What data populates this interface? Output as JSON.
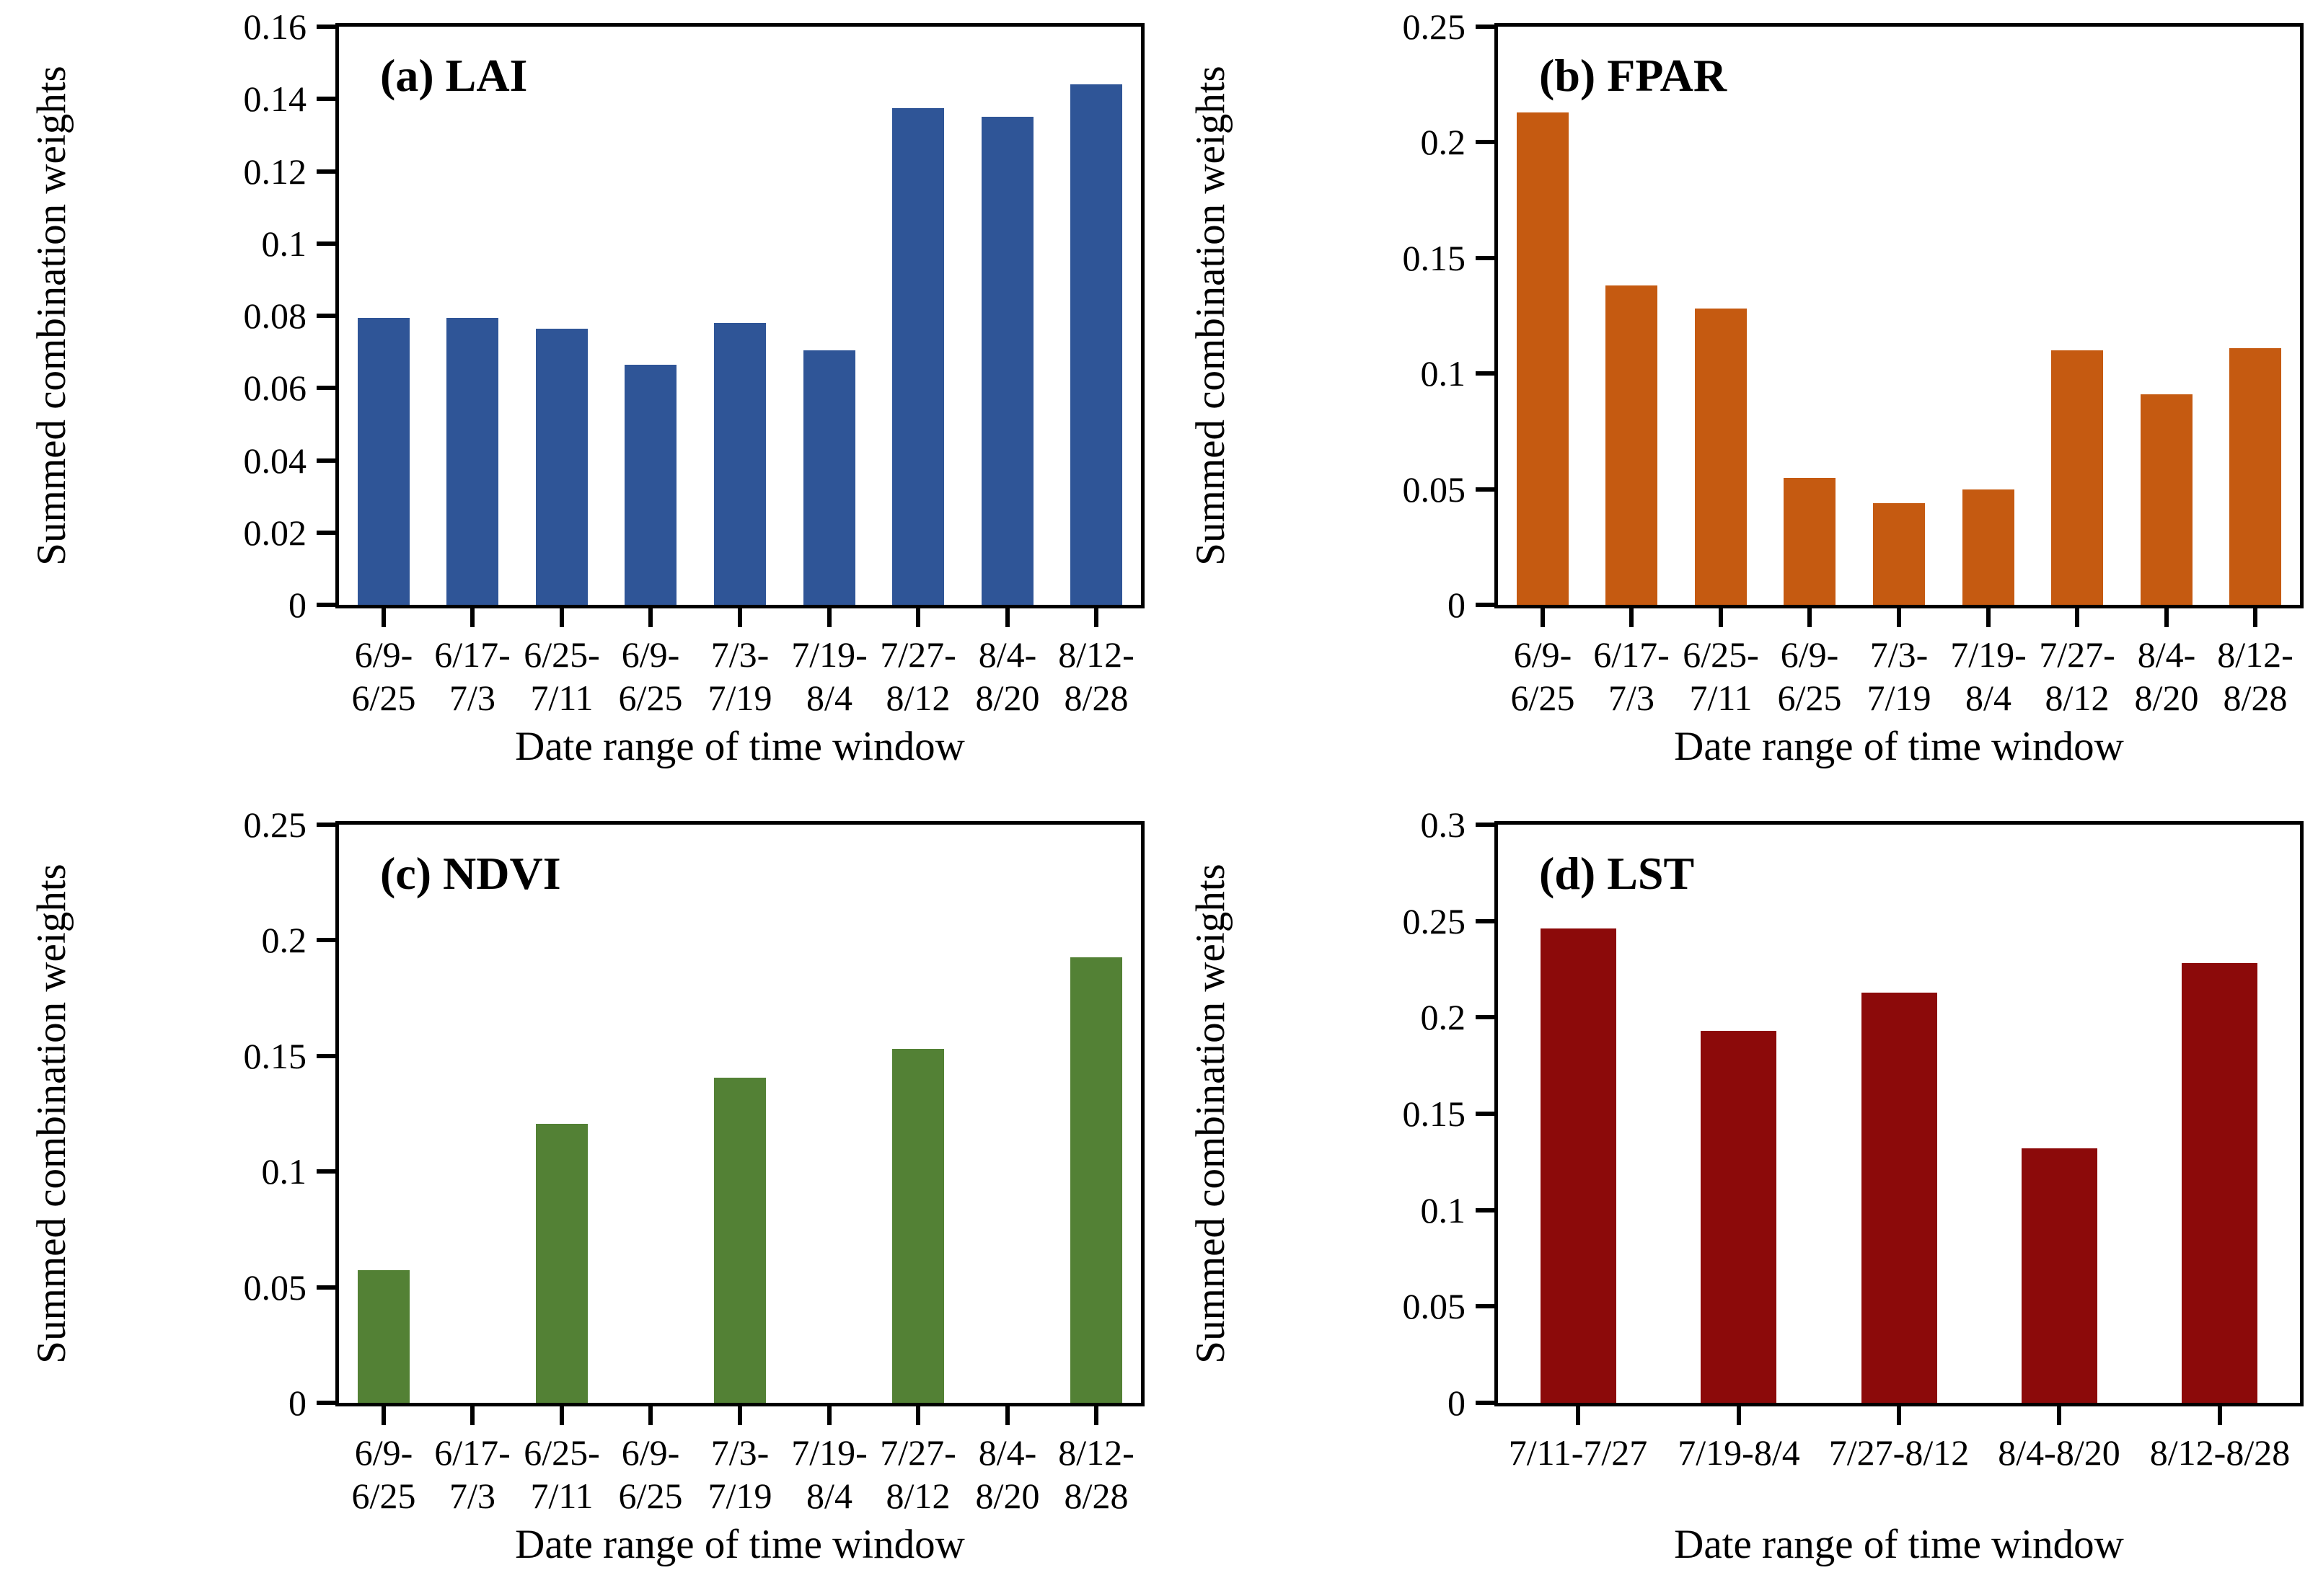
{
  "figure": {
    "background": "#ffffff",
    "x_axis_title": "Date range of time window",
    "y_axis_title": "Summed combination weights"
  },
  "chart_data": [
    {
      "type": "bar",
      "panel": "a",
      "title": "(a) LAI",
      "xlabel": "Date range of time window",
      "ylabel": "Summed combination weights",
      "ylim": [
        0,
        0.16
      ],
      "ytick_step": 0.02,
      "y_tick_labels": [
        "0.16",
        "0.14",
        "0.12",
        "0.1",
        "0.08",
        "0.06",
        "0.04",
        "0.02",
        "0"
      ],
      "bar_color": "#2F5597",
      "bar_width_frac": 0.58,
      "grid": false,
      "legend": "none",
      "categories": [
        "6/9-6/25",
        "6/17-7/3",
        "6/25-7/11",
        "6/9-6/25",
        "7/3-7/19",
        "7/19-8/4",
        "7/27-8/12",
        "8/4-8/20",
        "8/12-8/28"
      ],
      "category_label_lines": [
        [
          "6/9-",
          "6/25"
        ],
        [
          "6/17-",
          "7/3"
        ],
        [
          "6/25-",
          "7/11"
        ],
        [
          "6/9-",
          "6/25"
        ],
        [
          "7/3-",
          "7/19"
        ],
        [
          "7/19-",
          "8/4"
        ],
        [
          "7/27-",
          "8/12"
        ],
        [
          "8/4-",
          "8/20"
        ],
        [
          "8/12-",
          "8/28"
        ]
      ],
      "values": [
        0.0795,
        0.0795,
        0.0765,
        0.0665,
        0.078,
        0.0705,
        0.1375,
        0.135,
        0.144
      ]
    },
    {
      "type": "bar",
      "panel": "b",
      "title": "(b) FPAR",
      "xlabel": "Date range of time window",
      "ylabel": "Summed combination weights",
      "ylim": [
        0,
        0.25
      ],
      "ytick_step": 0.05,
      "y_tick_labels": [
        "0.25",
        "0.2",
        "0.15",
        "0.1",
        "0.05",
        "0"
      ],
      "bar_color": "#C55A11",
      "bar_width_frac": 0.58,
      "grid": false,
      "legend": "none",
      "categories": [
        "6/9-6/25",
        "6/17-7/3",
        "6/25-7/11",
        "6/9-6/25",
        "7/3-7/19",
        "7/19-8/4",
        "7/27-8/12",
        "8/4-8/20",
        "8/12-8/28"
      ],
      "category_label_lines": [
        [
          "6/9-",
          "6/25"
        ],
        [
          "6/17-",
          "7/3"
        ],
        [
          "6/25-",
          "7/11"
        ],
        [
          "6/9-",
          "6/25"
        ],
        [
          "7/3-",
          "7/19"
        ],
        [
          "7/19-",
          "8/4"
        ],
        [
          "7/27-",
          "8/12"
        ],
        [
          "8/4-",
          "8/20"
        ],
        [
          "8/12-",
          "8/28"
        ]
      ],
      "values": [
        0.213,
        0.138,
        0.128,
        0.055,
        0.044,
        0.05,
        0.11,
        0.091,
        0.111
      ]
    },
    {
      "type": "bar",
      "panel": "c",
      "title": "(c) NDVI",
      "xlabel": "Date range of time window",
      "ylabel": "Summed combination weights",
      "ylim": [
        0,
        0.25
      ],
      "ytick_step": 0.05,
      "y_tick_labels": [
        "0.25",
        "0.2",
        "0.15",
        "0.1",
        "0.05",
        "0"
      ],
      "bar_color": "#538135",
      "bar_width_frac": 0.58,
      "grid": false,
      "legend": "none",
      "categories": [
        "6/9-6/25",
        "6/17-7/3",
        "6/25-7/11",
        "6/9-6/25",
        "7/3-7/19",
        "7/19-8/4",
        "7/27-8/12",
        "8/4-8/20",
        "8/12-8/28"
      ],
      "category_label_lines": [
        [
          "6/9-",
          "6/25"
        ],
        [
          "6/17-",
          "7/3"
        ],
        [
          "6/25-",
          "7/11"
        ],
        [
          "6/9-",
          "6/25"
        ],
        [
          "7/3-",
          "7/19"
        ],
        [
          "7/19-",
          "8/4"
        ],
        [
          "7/27-",
          "8/12"
        ],
        [
          "8/4-",
          "8/20"
        ],
        [
          "8/12-",
          "8/28"
        ]
      ],
      "values": [
        0.0575,
        0,
        0.1205,
        0,
        0.1405,
        0,
        0.153,
        0,
        0.1925
      ]
    },
    {
      "type": "bar",
      "panel": "d",
      "title": "(d) LST",
      "xlabel": "Date range of time window",
      "ylabel": "Summed combination weights",
      "ylim": [
        0,
        0.3
      ],
      "ytick_step": 0.05,
      "y_tick_labels": [
        "0.3",
        "0.25",
        "0.2",
        "0.15",
        "0.1",
        "0.05",
        "0"
      ],
      "bar_color": "#8C0A0A",
      "bar_width_frac": 0.47,
      "grid": false,
      "legend": "none",
      "categories": [
        "7/11-7/27",
        "7/19-8/4",
        "7/27-8/12",
        "8/4-8/20",
        "8/12-8/28"
      ],
      "category_label_lines": [
        [
          "7/11-7/27"
        ],
        [
          "7/19-8/4"
        ],
        [
          "7/27-8/12"
        ],
        [
          "8/4-8/20"
        ],
        [
          "8/12-8/28"
        ]
      ],
      "values": [
        0.246,
        0.193,
        0.213,
        0.132,
        0.228
      ]
    }
  ]
}
